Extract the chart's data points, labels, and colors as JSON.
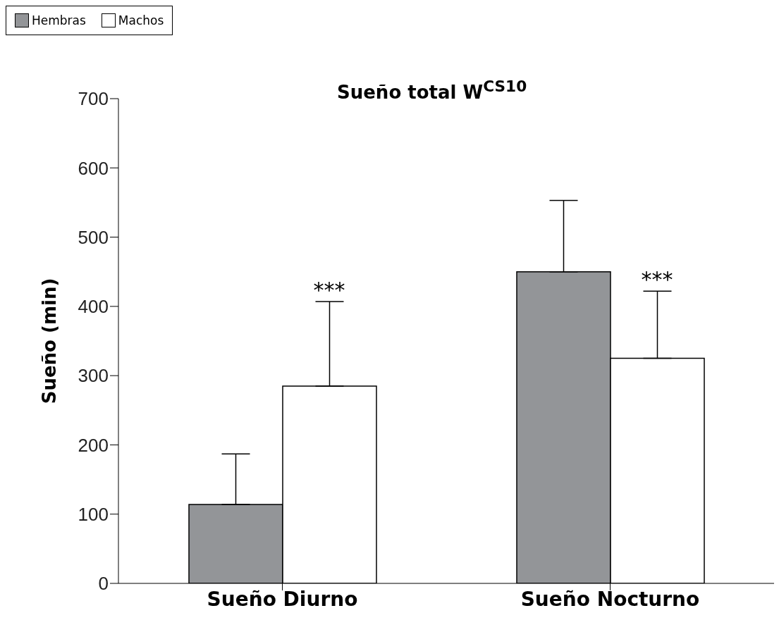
{
  "chart_data": {
    "type": "bar",
    "title": "Sueño total W$^{CS10}$",
    "ylabel": "Sueño (min)",
    "categories": [
      "Sueño Diurno",
      "Sueño Nocturno"
    ],
    "series": [
      {
        "name": "Hembras",
        "color": "#939598",
        "values": [
          114,
          450
        ],
        "errors": [
          [
            114,
            187
          ],
          [
            450,
            553
          ]
        ]
      },
      {
        "name": "Machos",
        "color": "#ffffff",
        "values": [
          285,
          325
        ],
        "errors": [
          [
            285,
            407
          ],
          [
            325,
            422
          ]
        ]
      }
    ],
    "ylim": [
      0,
      700
    ],
    "yticks": [
      0,
      100,
      200,
      300,
      400,
      500,
      600,
      700
    ],
    "grid": false,
    "legend": "top left",
    "annotations": [
      "***",
      "***"
    ]
  }
}
